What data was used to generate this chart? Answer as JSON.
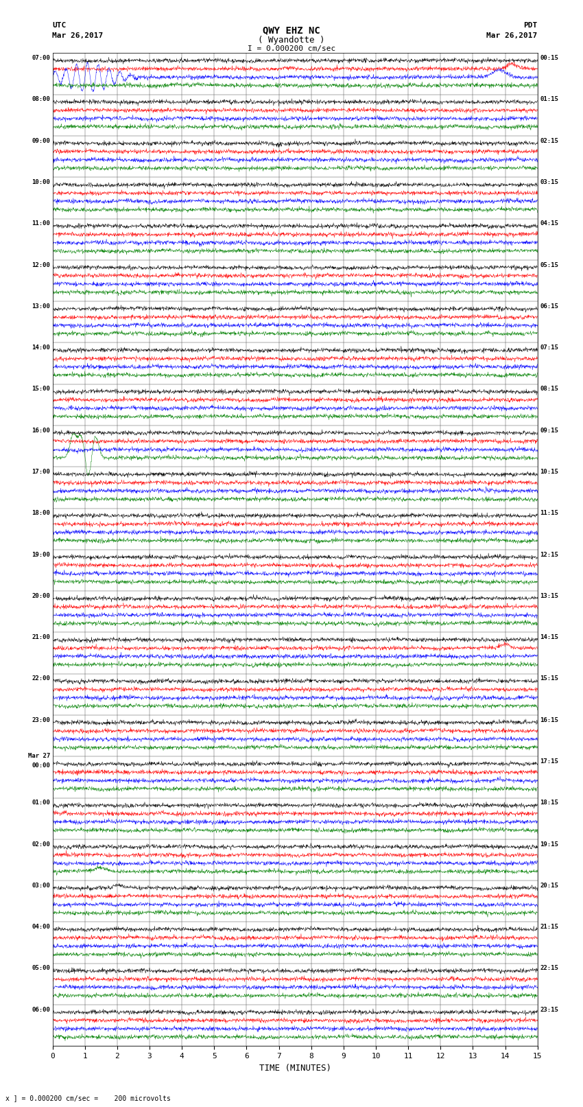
{
  "title_line1": "QWY EHZ NC",
  "title_line2": "( Wyandotte )",
  "scale_text": "I = 0.000200 cm/sec",
  "bottom_note": "x ] = 0.000200 cm/sec =    200 microvolts",
  "utc_label": "UTC",
  "utc_date": "Mar 26,2017",
  "pdt_label": "PDT",
  "pdt_date": "Mar 26,2017",
  "xlabel": "TIME (MINUTES)",
  "bg_color": "#ffffff",
  "trace_colors": [
    "black",
    "red",
    "blue",
    "green"
  ],
  "num_rows": 24,
  "left_times": [
    "07:00",
    "08:00",
    "09:00",
    "10:00",
    "11:00",
    "12:00",
    "13:00",
    "14:00",
    "15:00",
    "16:00",
    "17:00",
    "18:00",
    "19:00",
    "20:00",
    "21:00",
    "22:00",
    "23:00",
    "00:00",
    "01:00",
    "02:00",
    "03:00",
    "04:00",
    "05:00",
    "06:00"
  ],
  "mar27_row": 17,
  "right_times": [
    "00:15",
    "01:15",
    "02:15",
    "03:15",
    "04:15",
    "05:15",
    "06:15",
    "07:15",
    "08:15",
    "09:15",
    "10:15",
    "11:15",
    "12:15",
    "13:15",
    "14:15",
    "15:15",
    "16:15",
    "17:15",
    "18:15",
    "19:15",
    "20:15",
    "21:15",
    "22:15",
    "23:15"
  ],
  "seed": 42,
  "noise_amp": 0.025,
  "lf_amp": 0.008,
  "sub_offsets": [
    0.82,
    0.62,
    0.42,
    0.22
  ],
  "event_row_blue": 0,
  "event_blue_minute": 1.1,
  "event_row_green_spike": 9,
  "event_green_minute": 0.9,
  "event_row_red14": 0,
  "event_red14_minute": 14.2,
  "event_blue14_minute": 13.8,
  "lw": 0.35
}
